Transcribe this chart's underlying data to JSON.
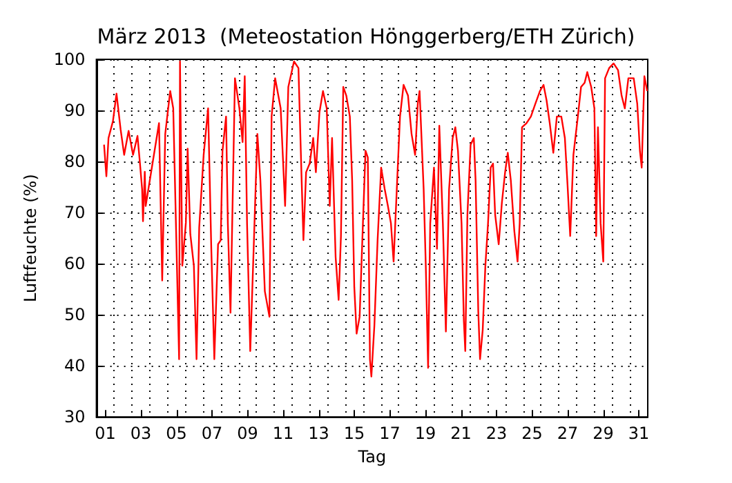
{
  "chart_data": {
    "type": "line",
    "title": "März 2013  (Meteostation Hönggerberg/ETH Zürich)",
    "xlabel": "Tag",
    "ylabel": "Luftfeuchte (%)",
    "xlim": [
      1,
      32
    ],
    "ylim": [
      30,
      100
    ],
    "yticks": [
      30,
      40,
      50,
      60,
      70,
      80,
      90,
      100
    ],
    "xticks": [
      {
        "value": 1.5,
        "label": "01"
      },
      {
        "value": 2,
        "label": null
      },
      {
        "value": 3,
        "label": null
      },
      {
        "value": 3.5,
        "label": "03"
      },
      {
        "value": 4,
        "label": null
      },
      {
        "value": 5,
        "label": null
      },
      {
        "value": 5.5,
        "label": "05"
      },
      {
        "value": 6,
        "label": null
      },
      {
        "value": 7,
        "label": null
      },
      {
        "value": 7.5,
        "label": "07"
      },
      {
        "value": 8,
        "label": null
      },
      {
        "value": 9,
        "label": null
      },
      {
        "value": 9.5,
        "label": "09"
      },
      {
        "value": 10,
        "label": null
      },
      {
        "value": 11,
        "label": null
      },
      {
        "value": 11.5,
        "label": "11"
      },
      {
        "value": 12,
        "label": null
      },
      {
        "value": 13,
        "label": null
      },
      {
        "value": 13.5,
        "label": "13"
      },
      {
        "value": 14,
        "label": null
      },
      {
        "value": 15,
        "label": null
      },
      {
        "value": 15.5,
        "label": "15"
      },
      {
        "value": 16,
        "label": null
      },
      {
        "value": 17,
        "label": null
      },
      {
        "value": 17.5,
        "label": "17"
      },
      {
        "value": 18,
        "label": null
      },
      {
        "value": 19,
        "label": null
      },
      {
        "value": 19.5,
        "label": "19"
      },
      {
        "value": 20,
        "label": null
      },
      {
        "value": 21,
        "label": null
      },
      {
        "value": 21.5,
        "label": "21"
      },
      {
        "value": 22,
        "label": null
      },
      {
        "value": 23,
        "label": null
      },
      {
        "value": 23.5,
        "label": "23"
      },
      {
        "value": 24,
        "label": null
      },
      {
        "value": 25,
        "label": null
      },
      {
        "value": 25.5,
        "label": "25"
      },
      {
        "value": 26,
        "label": null
      },
      {
        "value": 27,
        "label": null
      },
      {
        "value": 27.5,
        "label": "27"
      },
      {
        "value": 28,
        "label": null
      },
      {
        "value": 29,
        "label": null
      },
      {
        "value": 29.5,
        "label": "29"
      },
      {
        "value": 30,
        "label": null
      },
      {
        "value": 31,
        "label": null
      },
      {
        "value": 31.5,
        "label": "31"
      }
    ],
    "grid": true,
    "marker": "none",
    "line_style": "solid",
    "series": [
      {
        "color": "#ff0000",
        "x": [
          1.43,
          1.56,
          1.68,
          1.93,
          2.13,
          2.36,
          2.56,
          2.81,
          3.06,
          3.31,
          3.44,
          3.57,
          3.62,
          3.72,
          3.77,
          4.52,
          4.7,
          4.87,
          5.15,
          5.32,
          5.65,
          5.7,
          5.83,
          6.03,
          6.13,
          6.28,
          6.48,
          6.63,
          6.78,
          7.03,
          7.28,
          7.46,
          7.63,
          7.84,
          7.99,
          8.09,
          8.29,
          8.39,
          8.54,
          8.79,
          9.04,
          9.22,
          9.34,
          9.47,
          9.65,
          9.85,
          10.05,
          10.22,
          10.47,
          10.73,
          10.85,
          11.05,
          11.1,
          11.36,
          11.61,
          11.79,
          12.11,
          12.36,
          12.54,
          12.64,
          12.79,
          12.99,
          13.19,
          13.34,
          13.54,
          13.74,
          13.95,
          14.12,
          14.25,
          14.45,
          14.62,
          14.75,
          14.88,
          15.05,
          15.25,
          15.38,
          15.5,
          15.63,
          15.8,
          15.96,
          16.13,
          16.26,
          16.38,
          16.46,
          16.63,
          16.81,
          17.01,
          17.21,
          17.39,
          17.56,
          17.71,
          17.89,
          18.07,
          18.27,
          18.52,
          18.72,
          18.92,
          19.07,
          19.17,
          19.4,
          19.52,
          19.65,
          19.77,
          19.98,
          20.15,
          20.28,
          20.48,
          20.65,
          20.83,
          21.03,
          21.18,
          21.33,
          21.53,
          21.66,
          21.74,
          21.86,
          22.04,
          22.22,
          22.32,
          22.47,
          22.57,
          22.72,
          22.87,
          23.02,
          23.17,
          23.3,
          23.42,
          23.62,
          23.8,
          23.98,
          24.13,
          24.3,
          24.5,
          24.68,
          24.8,
          24.93,
          25.18,
          25.43,
          25.68,
          25.94,
          26.14,
          26.31,
          26.49,
          26.69,
          26.89,
          27.14,
          27.34,
          27.49,
          27.64,
          27.82,
          28.07,
          28.25,
          28.45,
          28.6,
          28.82,
          29,
          29.1,
          29.2,
          29.35,
          29.5,
          29.6,
          29.83,
          30.08,
          30.33,
          30.53,
          30.71,
          30.91,
          31.21,
          31.41,
          31.56,
          31.66,
          31.81,
          31.97
        ],
        "values": [
          83.3,
          77.1,
          84.6,
          87.9,
          93.3,
          86.3,
          81.3,
          86,
          81.3,
          85,
          80,
          74.6,
          68.3,
          78,
          71.3,
          87.5,
          56.7,
          85.4,
          93.8,
          90.4,
          41.3,
          99.6,
          59.6,
          68,
          82.5,
          65.8,
          59.6,
          41.3,
          67.1,
          81.3,
          90.4,
          62.9,
          41.3,
          63.8,
          64.6,
          82.1,
          88.8,
          67.9,
          50.4,
          96.3,
          90.4,
          83.8,
          96.7,
          67.9,
          42.9,
          63.8,
          85.4,
          76.3,
          54.6,
          49.6,
          88.8,
          96.3,
          96.3,
          90.4,
          71.3,
          94.6,
          99.6,
          98.3,
          76.3,
          64.6,
          77.9,
          79.6,
          84.6,
          77.9,
          89.6,
          93.8,
          90.4,
          71.3,
          84.6,
          61.3,
          52.9,
          65.4,
          94.6,
          92.9,
          88.8,
          76.3,
          55.4,
          46.3,
          49.6,
          65.4,
          82.1,
          80.8,
          41.3,
          37.9,
          47.9,
          64.6,
          78.8,
          74.6,
          71.3,
          67.9,
          60.4,
          74.6,
          88.8,
          95,
          92.9,
          85.4,
          81.3,
          91.3,
          93.8,
          74.6,
          59.6,
          39.6,
          67.9,
          78.8,
          62.9,
          87,
          67.9,
          46.7,
          74.6,
          84.6,
          86.7,
          82.1,
          67.9,
          48.8,
          42.9,
          69.6,
          83.3,
          84.6,
          76.3,
          50.8,
          41.3,
          47,
          59.6,
          67.9,
          78.8,
          79.6,
          69.6,
          63.8,
          72,
          77.9,
          81.7,
          76.3,
          66.3,
          60.4,
          67.9,
          86.7,
          87.5,
          88.8,
          91.3,
          93.8,
          95,
          92,
          87.5,
          81.7,
          88.8,
          88.8,
          84.6,
          75.4,
          65.4,
          81.3,
          88.8,
          94.6,
          95.4,
          97.5,
          94.6,
          90.4,
          65.4,
          86.7,
          67.9,
          60.4,
          96.3,
          98.3,
          99.2,
          97.9,
          92.9,
          90.4,
          96.3,
          96.3,
          91.3,
          82.1,
          78.8,
          96.7,
          93.8
        ]
      }
    ]
  }
}
